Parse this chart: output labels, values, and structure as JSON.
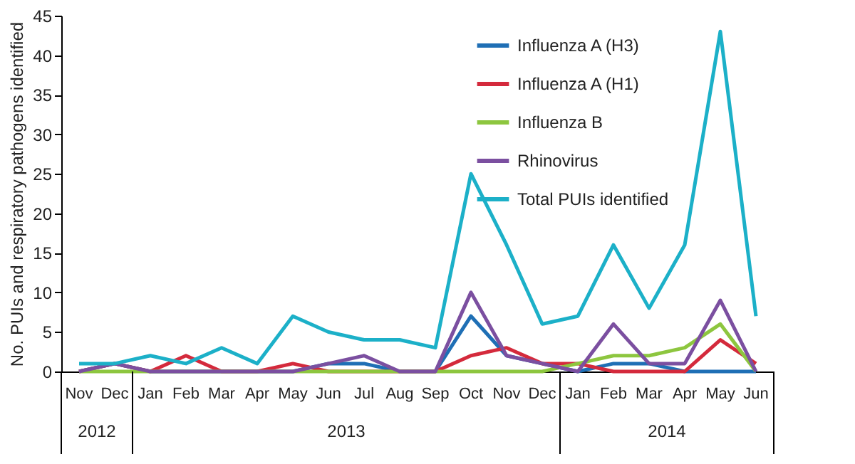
{
  "chart_data": {
    "type": "line",
    "ylabel": "No. PUIs and respiratory pathogens identified",
    "categories": [
      "Nov",
      "Dec",
      "Jan",
      "Feb",
      "Mar",
      "Apr",
      "May",
      "Jun",
      "Jul",
      "Aug",
      "Sep",
      "Oct",
      "Nov",
      "Dec",
      "Jan",
      "Feb",
      "Mar",
      "Apr",
      "May",
      "Jun"
    ],
    "series": [
      {
        "name": "Influenza A (H3)",
        "color": "#1f6fb5",
        "values": [
          0,
          1,
          0,
          0,
          0,
          0,
          0,
          1,
          1,
          0,
          0,
          7,
          2,
          1,
          0,
          1,
          1,
          0,
          0,
          0
        ]
      },
      {
        "name": "Influenza A (H1)",
        "color": "#d42a3c",
        "values": [
          0,
          1,
          0,
          2,
          0,
          0,
          1,
          0,
          0,
          0,
          0,
          2,
          3,
          1,
          1,
          0,
          0,
          0,
          4,
          1
        ]
      },
      {
        "name": "Influenza B",
        "color": "#8dc63f",
        "values": [
          0,
          0,
          0,
          0,
          0,
          0,
          0,
          0,
          0,
          0,
          0,
          0,
          0,
          0,
          1,
          2,
          2,
          3,
          6,
          0
        ]
      },
      {
        "name": "Rhinovirus",
        "color": "#7b4fa0",
        "values": [
          0,
          1,
          0,
          0,
          0,
          0,
          0,
          1,
          2,
          0,
          0,
          10,
          2,
          1,
          0,
          6,
          1,
          1,
          9,
          0
        ]
      },
      {
        "name": "Total PUIs identified",
        "color": "#1cb0c8",
        "values": [
          1,
          1,
          2,
          1,
          3,
          1,
          7,
          5,
          4,
          4,
          3,
          25,
          16,
          6,
          7,
          16,
          8,
          16,
          43,
          7
        ]
      }
    ],
    "ylim": [
      0,
      45
    ],
    "yticks": [
      0,
      5,
      10,
      15,
      20,
      25,
      30,
      35,
      40,
      45
    ],
    "annotations": [
      "2012",
      "2013",
      "2014"
    ],
    "grid": false,
    "legend": "top right",
    "marker": "none",
    "line_style": "solid"
  }
}
